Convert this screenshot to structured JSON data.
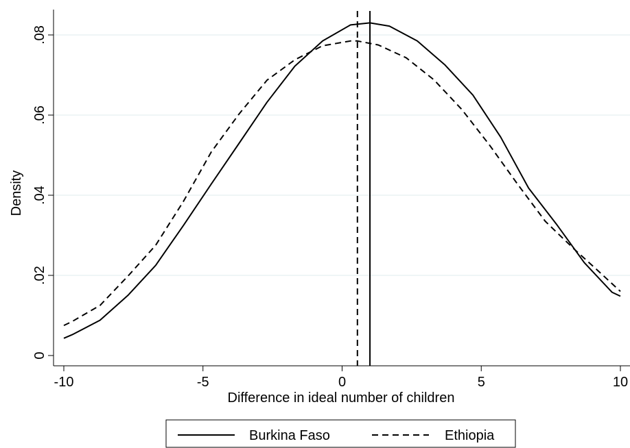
{
  "chart_data": {
    "type": "line",
    "title": "",
    "xlabel": "Difference in ideal number of children",
    "ylabel": "Density",
    "xlim": [
      -10,
      10
    ],
    "ylim": [
      0,
      0.085
    ],
    "x_ticks": [
      {
        "value": -10,
        "label": "-10"
      },
      {
        "value": -5,
        "label": "-5"
      },
      {
        "value": 0,
        "label": "0"
      },
      {
        "value": 5,
        "label": "5"
      },
      {
        "value": 10,
        "label": "10"
      }
    ],
    "y_ticks": [
      {
        "value": 0,
        "label": "0"
      },
      {
        "value": 0.02,
        "label": ".02"
      },
      {
        "value": 0.04,
        "label": ".04"
      },
      {
        "value": 0.06,
        "label": ".06"
      },
      {
        "value": 0.08,
        "label": ".08"
      }
    ],
    "grid": "horizontal",
    "legend_position": "bottom",
    "series": [
      {
        "name": "Burkina Faso",
        "line_style": "solid",
        "color": "#000000",
        "x": [
          -10,
          -9.7,
          -8.7,
          -7.7,
          -6.7,
          -5.7,
          -4.7,
          -3.7,
          -2.7,
          -1.7,
          -0.7,
          0.3,
          1.0,
          1.7,
          2.7,
          3.7,
          4.7,
          5.7,
          6.7,
          7.7,
          8.7,
          9.7,
          10
        ],
        "y": [
          0.0043,
          0.0052,
          0.0088,
          0.015,
          0.0225,
          0.0325,
          0.0428,
          0.053,
          0.0632,
          0.0722,
          0.0785,
          0.0825,
          0.083,
          0.0822,
          0.0785,
          0.0725,
          0.065,
          0.0545,
          0.0418,
          0.0328,
          0.0232,
          0.0158,
          0.0148
        ],
        "mean_line": 1.0
      },
      {
        "name": "Ethiopia",
        "line_style": "dashed",
        "color": "#000000",
        "x": [
          -10,
          -9.7,
          -8.7,
          -7.7,
          -6.7,
          -5.7,
          -4.7,
          -3.7,
          -2.7,
          -1.7,
          -0.7,
          0.3,
          0.55,
          1.3,
          2.3,
          3.3,
          4.3,
          5.3,
          6.3,
          7.3,
          8.3,
          9.3,
          10
        ],
        "y": [
          0.0075,
          0.0085,
          0.0125,
          0.0198,
          0.0275,
          0.0385,
          0.0508,
          0.0603,
          0.0687,
          0.0738,
          0.0773,
          0.0785,
          0.0785,
          0.0775,
          0.0743,
          0.0688,
          0.0614,
          0.0525,
          0.0428,
          0.0335,
          0.0268,
          0.0205,
          0.016
        ],
        "mean_line": 0.55
      }
    ]
  }
}
